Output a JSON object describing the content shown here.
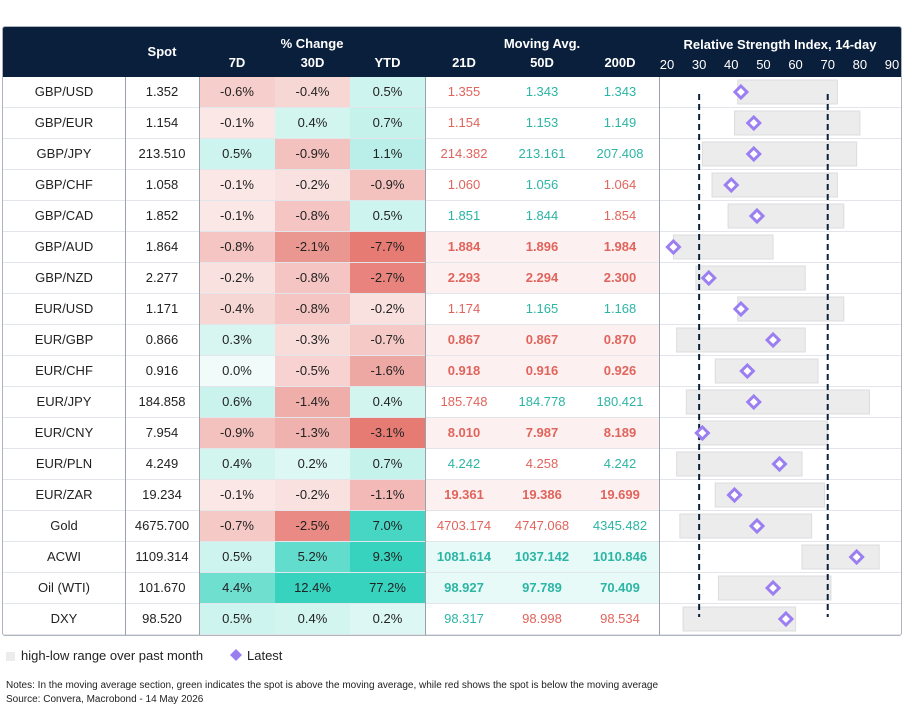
{
  "header": {
    "spot": "Spot",
    "pct_change": "% Change",
    "col_7d": "7D",
    "col_30d": "30D",
    "col_ytd": "YTD",
    "moving_avg": "Moving Avg.",
    "col_21d": "21D",
    "col_50d": "50D",
    "col_200d": "200D",
    "rsi_title": "Relative Strength Index, 14-day"
  },
  "colors": {
    "header_bg": "#0a1f3c",
    "ma_above": "#2cb5a5",
    "ma_below": "#e0645c",
    "marker": "#9b7ef0",
    "range_bar": "#ececec",
    "threshold_line": "#0a1f3c"
  },
  "chart_data": {
    "type": "table",
    "rsi_axis": {
      "min": 20,
      "max": 90,
      "ticks": [
        20,
        30,
        40,
        50,
        60,
        70,
        80,
        90
      ],
      "thresholds": [
        30,
        70
      ]
    },
    "rows": [
      {
        "name": "GBP/USD",
        "spot": "1.352",
        "d7": "-0.6%",
        "d30": "-0.4%",
        "ytd": "0.5%",
        "ma21": "1.355",
        "ma50": "1.343",
        "ma200": "1.343",
        "rsi": 43,
        "rsi_low": 42,
        "rsi_high": 73
      },
      {
        "name": "GBP/EUR",
        "spot": "1.154",
        "d7": "-0.1%",
        "d30": "0.4%",
        "ytd": "0.7%",
        "ma21": "1.154",
        "ma50": "1.153",
        "ma200": "1.149",
        "rsi": 47,
        "rsi_low": 41,
        "rsi_high": 80
      },
      {
        "name": "GBP/JPY",
        "spot": "213.510",
        "d7": "0.5%",
        "d30": "-0.9%",
        "ytd": "1.1%",
        "ma21": "214.382",
        "ma50": "213.161",
        "ma200": "207.408",
        "rsi": 47,
        "rsi_low": 31,
        "rsi_high": 79
      },
      {
        "name": "GBP/CHF",
        "spot": "1.058",
        "d7": "-0.1%",
        "d30": "-0.2%",
        "ytd": "-0.9%",
        "ma21": "1.060",
        "ma50": "1.056",
        "ma200": "1.064",
        "rsi": 40,
        "rsi_low": 34,
        "rsi_high": 73
      },
      {
        "name": "GBP/CAD",
        "spot": "1.852",
        "d7": "-0.1%",
        "d30": "-0.8%",
        "ytd": "0.5%",
        "ma21": "1.851",
        "ma50": "1.844",
        "ma200": "1.854",
        "rsi": 48,
        "rsi_low": 39,
        "rsi_high": 75
      },
      {
        "name": "GBP/AUD",
        "spot": "1.864",
        "d7": "-0.8%",
        "d30": "-2.1%",
        "ytd": "-7.7%",
        "ma21": "1.884",
        "ma50": "1.896",
        "ma200": "1.984",
        "rsi": 22,
        "rsi_low": 22,
        "rsi_high": 53
      },
      {
        "name": "GBP/NZD",
        "spot": "2.277",
        "d7": "-0.2%",
        "d30": "-0.8%",
        "ytd": "-2.7%",
        "ma21": "2.293",
        "ma50": "2.294",
        "ma200": "2.300",
        "rsi": 33,
        "rsi_low": 29,
        "rsi_high": 63
      },
      {
        "name": "EUR/USD",
        "spot": "1.171",
        "d7": "-0.4%",
        "d30": "-0.8%",
        "ytd": "-0.2%",
        "ma21": "1.174",
        "ma50": "1.165",
        "ma200": "1.168",
        "rsi": 43,
        "rsi_low": 42,
        "rsi_high": 75
      },
      {
        "name": "EUR/GBP",
        "spot": "0.866",
        "d7": "0.3%",
        "d30": "-0.3%",
        "ytd": "-0.7%",
        "ma21": "0.867",
        "ma50": "0.867",
        "ma200": "0.870",
        "rsi": 53,
        "rsi_low": 23,
        "rsi_high": 63
      },
      {
        "name": "EUR/CHF",
        "spot": "0.916",
        "d7": "0.0%",
        "d30": "-0.5%",
        "ytd": "-1.6%",
        "ma21": "0.918",
        "ma50": "0.916",
        "ma200": "0.926",
        "rsi": 45,
        "rsi_low": 35,
        "rsi_high": 67
      },
      {
        "name": "EUR/JPY",
        "spot": "184.858",
        "d7": "0.6%",
        "d30": "-1.4%",
        "ytd": "0.4%",
        "ma21": "185.748",
        "ma50": "184.778",
        "ma200": "180.421",
        "rsi": 47,
        "rsi_low": 26,
        "rsi_high": 83
      },
      {
        "name": "EUR/CNY",
        "spot": "7.954",
        "d7": "-0.9%",
        "d30": "-1.3%",
        "ytd": "-3.1%",
        "ma21": "8.010",
        "ma50": "7.987",
        "ma200": "8.189",
        "rsi": 31,
        "rsi_low": 30,
        "rsi_high": 70
      },
      {
        "name": "EUR/PLN",
        "spot": "4.249",
        "d7": "0.4%",
        "d30": "0.2%",
        "ytd": "0.7%",
        "ma21": "4.242",
        "ma50": "4.258",
        "ma200": "4.242",
        "rsi": 55,
        "rsi_low": 23,
        "rsi_high": 62
      },
      {
        "name": "EUR/ZAR",
        "spot": "19.234",
        "d7": "-0.1%",
        "d30": "-0.2%",
        "ytd": "-1.1%",
        "ma21": "19.361",
        "ma50": "19.386",
        "ma200": "19.699",
        "rsi": 41,
        "rsi_low": 35,
        "rsi_high": 69
      },
      {
        "name": "Gold",
        "spot": "4675.700",
        "d7": "-0.7%",
        "d30": "-2.5%",
        "ytd": "7.0%",
        "ma21": "4703.174",
        "ma50": "4747.068",
        "ma200": "4345.482",
        "rsi": 48,
        "rsi_low": 24,
        "rsi_high": 65
      },
      {
        "name": "ACWI",
        "spot": "1109.314",
        "d7": "0.5%",
        "d30": "5.2%",
        "ytd": "9.3%",
        "ma21": "1081.614",
        "ma50": "1037.142",
        "ma200": "1010.846",
        "rsi": 79,
        "rsi_low": 62,
        "rsi_high": 86
      },
      {
        "name": "Oil (WTI)",
        "spot": "101.670",
        "d7": "4.4%",
        "d30": "12.4%",
        "ytd": "77.2%",
        "ma21": "98.927",
        "ma50": "97.789",
        "ma200": "70.409",
        "rsi": 53,
        "rsi_low": 36,
        "rsi_high": 71
      },
      {
        "name": "DXY",
        "spot": "98.520",
        "d7": "0.5%",
        "d30": "0.4%",
        "ytd": "0.2%",
        "ma21": "98.317",
        "ma50": "98.998",
        "ma200": "98.534",
        "rsi": 57,
        "rsi_low": 25,
        "rsi_high": 60
      }
    ]
  },
  "legend": {
    "range": "high-low range over past month",
    "latest": "Latest"
  },
  "notes": {
    "line1": "Notes: In the moving average section, green indicates the spot is above the moving average, while red shows the spot is below the moving average",
    "line2": "Source: Convera, Macrobond - 14 May 2026"
  }
}
